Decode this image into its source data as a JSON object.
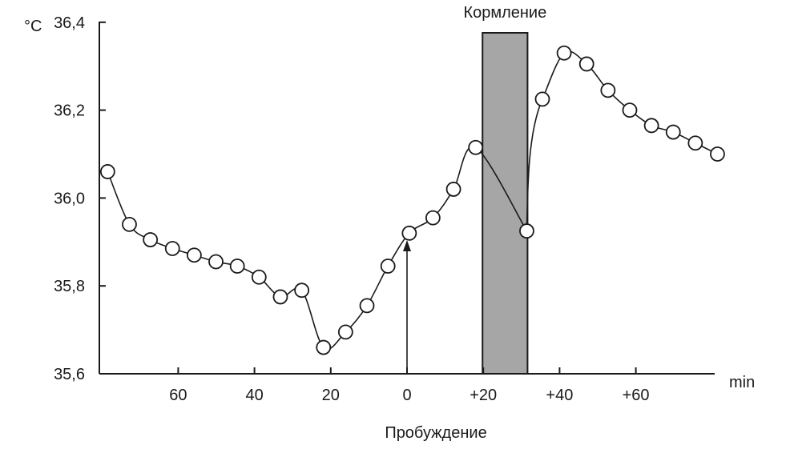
{
  "chart_data": {
    "type": "line",
    "ylabel": "°C",
    "xlabel": "min",
    "ylim": [
      35.6,
      36.4
    ],
    "xlim": [
      -80,
      80
    ],
    "yticks": [
      {
        "value": 35.6,
        "label": "35,6"
      },
      {
        "value": 35.8,
        "label": "35,8"
      },
      {
        "value": 36.0,
        "label": "36,0"
      },
      {
        "value": 36.2,
        "label": "36,2"
      },
      {
        "value": 36.4,
        "label": "36,4"
      }
    ],
    "xticks": [
      {
        "value": -60,
        "label": "60"
      },
      {
        "value": -40,
        "label": "40"
      },
      {
        "value": -20,
        "label": "20"
      },
      {
        "value": 0,
        "label": "0"
      },
      {
        "value": 20,
        "label": "+20"
      },
      {
        "value": 40,
        "label": "+40"
      },
      {
        "value": 60,
        "label": "+60"
      }
    ],
    "points": [
      {
        "x": -78.5,
        "y": 36.06
      },
      {
        "x": -72.8,
        "y": 35.94
      },
      {
        "x": -67.3,
        "y": 35.905
      },
      {
        "x": -61.5,
        "y": 35.885
      },
      {
        "x": -55.8,
        "y": 35.87
      },
      {
        "x": -50.1,
        "y": 35.855
      },
      {
        "x": -44.5,
        "y": 35.845
      },
      {
        "x": -38.8,
        "y": 35.82
      },
      {
        "x": -33.2,
        "y": 35.775
      },
      {
        "x": -27.6,
        "y": 35.79
      },
      {
        "x": -21.9,
        "y": 35.66
      },
      {
        "x": -16.1,
        "y": 35.695
      },
      {
        "x": -10.5,
        "y": 35.755
      },
      {
        "x": -5.0,
        "y": 35.845
      },
      {
        "x": 0.6,
        "y": 35.92
      },
      {
        "x": 6.8,
        "y": 35.955
      },
      {
        "x": 12.2,
        "y": 36.02
      },
      {
        "x": 18.0,
        "y": 36.115
      },
      {
        "x": 31.4,
        "y": 35.925
      },
      {
        "x": 35.5,
        "y": 36.225
      },
      {
        "x": 41.2,
        "y": 36.33
      },
      {
        "x": 47.1,
        "y": 36.305
      },
      {
        "x": 52.7,
        "y": 36.245
      },
      {
        "x": 58.4,
        "y": 36.2
      },
      {
        "x": 64.1,
        "y": 36.165
      },
      {
        "x": 69.8,
        "y": 36.15
      },
      {
        "x": 75.6,
        "y": 36.125
      },
      {
        "x": 81.4,
        "y": 36.1
      }
    ],
    "feeding": {
      "label": "Кормление",
      "start": 19.8,
      "end": 31.6,
      "color": "#a6a6a6"
    },
    "waking": {
      "label": "Пробуждение",
      "x": 0
    }
  }
}
